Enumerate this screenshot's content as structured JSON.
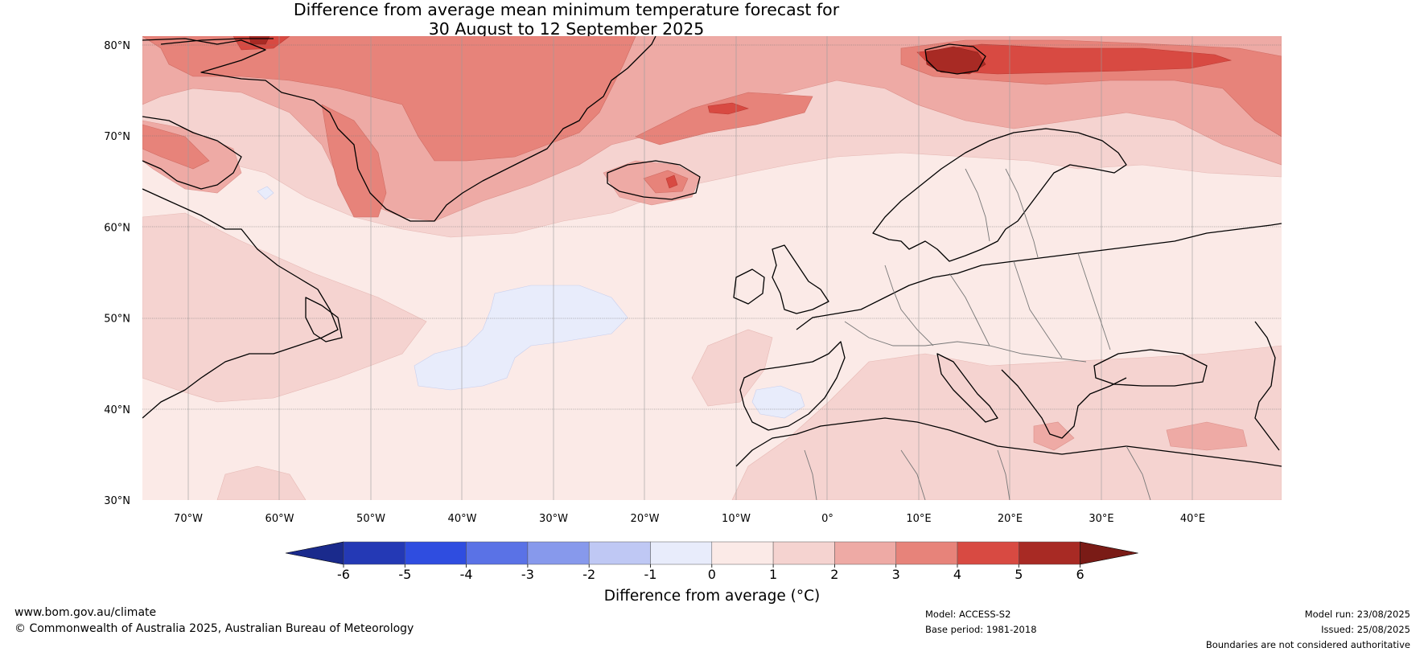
{
  "title": {
    "line1": "Difference from average mean minimum temperature forecast for",
    "line2": "30 August to 12 September 2025"
  },
  "map": {
    "lat_labels": [
      "80°N",
      "70°N",
      "60°N",
      "50°N",
      "40°N",
      "30°N"
    ],
    "lon_labels": [
      "70°W",
      "60°W",
      "50°W",
      "40°W",
      "30°W",
      "20°W",
      "10°W",
      "0°",
      "10°E",
      "20°E",
      "30°E",
      "40°E"
    ],
    "land_color": "#fbeae7",
    "regions": [
      {
        "name": "Greenland warm anomaly",
        "level": "3 to 4",
        "color": "#e7837a"
      },
      {
        "name": "Svalbard warm anomaly",
        "level": "5 to 6",
        "color": "#a82a24"
      },
      {
        "name": "Barents Sea warm anomaly",
        "level": "4 to 5",
        "color": "#d84a42"
      },
      {
        "name": "Mid-Atlantic cool anomaly",
        "level": "-1 to 0",
        "color": "#e8ecfb"
      }
    ]
  },
  "colorbar": {
    "title": "Difference from average (°C)",
    "tick_labels": [
      "-6",
      "-5",
      "-4",
      "-3",
      "-2",
      "-1",
      "0",
      "1",
      "2",
      "3",
      "4",
      "5",
      "6"
    ],
    "colors": [
      "#1a2a8c",
      "#2439b5",
      "#2f4de0",
      "#5a72e6",
      "#8799ec",
      "#bfc8f4",
      "#e8ecfb",
      "#fbeae7",
      "#f5d3d0",
      "#eeaaa5",
      "#e7837a",
      "#d84a42",
      "#a82a24",
      "#7a1b16"
    ]
  },
  "footer": {
    "website": "www.bom.gov.au/climate",
    "copyright": "© Commonwealth of Australia 2025, Australian Bureau of Meteorology",
    "model": "Model: ACCESS-S2",
    "base_period": "Base period: 1981-2018",
    "model_run": "Model run: 23/08/2025",
    "issued": "Issued: 25/08/2025",
    "disclaimer": "Boundaries are not considered authoritative"
  }
}
